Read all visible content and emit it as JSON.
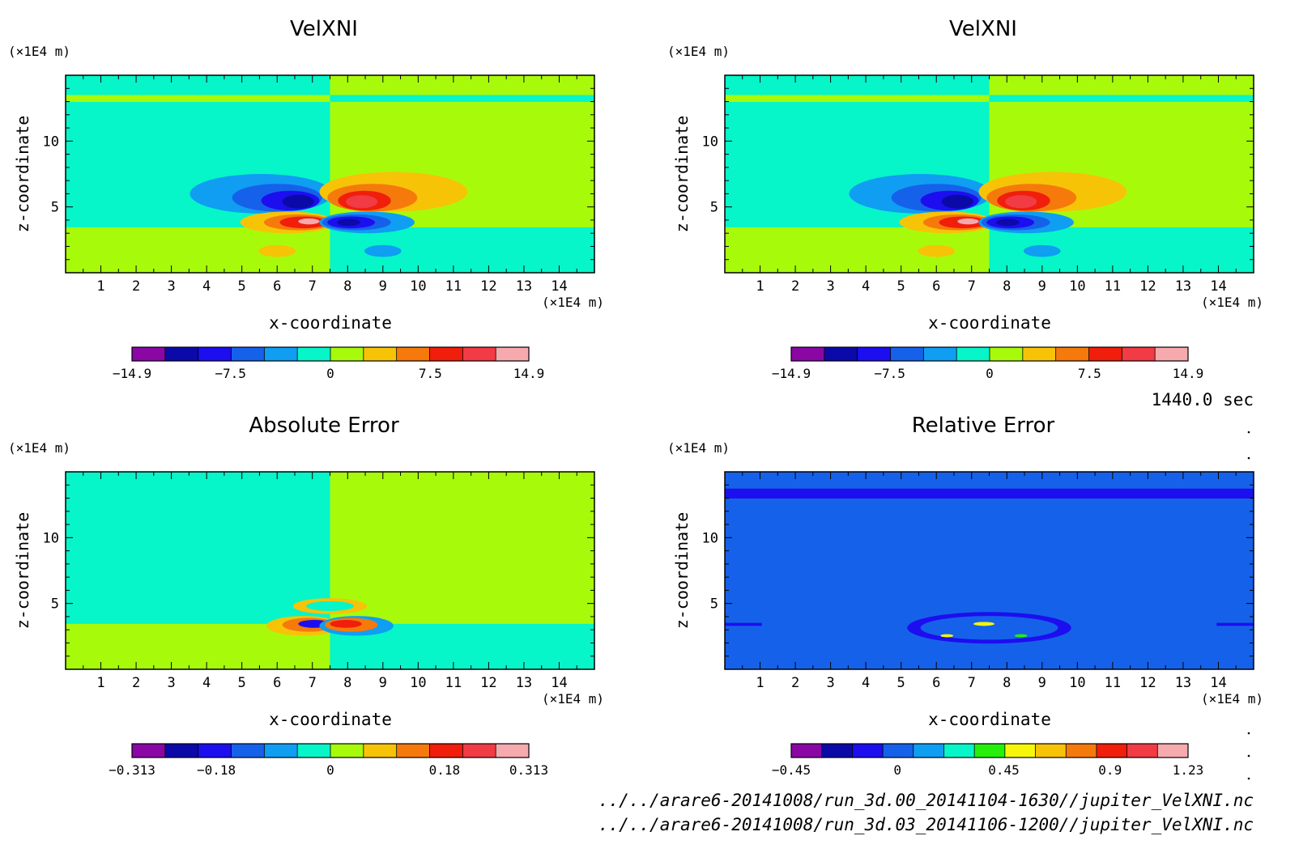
{
  "panels": [
    {
      "title": "VelXNI",
      "xlabel": "x-coordinate",
      "ylabel": "z-coordinate",
      "x_unit": "(×1E4 m)",
      "z_unit": "(×1E4 m)",
      "x_ticks": [
        "1",
        "2",
        "3",
        "4",
        "5",
        "6",
        "7",
        "8",
        "9",
        "10",
        "11",
        "12",
        "13",
        "14"
      ],
      "z_ticks": [
        "5",
        "10"
      ],
      "colorbar_labels": [
        "−14.9",
        "−7.5",
        "0",
        "7.5",
        "14.9"
      ],
      "colorbar_colors": [
        "#8a07a6",
        "#0b0aa8",
        "#1c0eef",
        "#1661ea",
        "#0f9ef2",
        "#06f5c9",
        "#a8fa0b",
        "#f7c307",
        "#f57a0b",
        "#f01e0a",
        "#f13b45",
        "#f7aaae"
      ]
    },
    {
      "title": "VelXNI",
      "xlabel": "x-coordinate",
      "ylabel": "z-coordinate",
      "x_unit": "(×1E4 m)",
      "z_unit": "(×1E4 m)",
      "x_ticks": [
        "1",
        "2",
        "3",
        "4",
        "5",
        "6",
        "7",
        "8",
        "9",
        "10",
        "11",
        "12",
        "13",
        "14"
      ],
      "z_ticks": [
        "5",
        "10"
      ],
      "colorbar_labels": [
        "−14.9",
        "−7.5",
        "0",
        "7.5",
        "14.9"
      ],
      "colorbar_colors": [
        "#8a07a6",
        "#0b0aa8",
        "#1c0eef",
        "#1661ea",
        "#0f9ef2",
        "#06f5c9",
        "#a8fa0b",
        "#f7c307",
        "#f57a0b",
        "#f01e0a",
        "#f13b45",
        "#f7aaae"
      ]
    },
    {
      "title": "Absolute Error",
      "xlabel": "x-coordinate",
      "ylabel": "z-coordinate",
      "x_unit": "(×1E4 m)",
      "z_unit": "(×1E4 m)",
      "x_ticks": [
        "1",
        "2",
        "3",
        "4",
        "5",
        "6",
        "7",
        "8",
        "9",
        "10",
        "11",
        "12",
        "13",
        "14"
      ],
      "z_ticks": [
        "5",
        "10"
      ],
      "colorbar_labels": [
        "−0.313",
        "−0.18",
        "0",
        "0.18",
        "0.313"
      ],
      "colorbar_colors": [
        "#8a07a6",
        "#0b0aa8",
        "#1c0eef",
        "#1661ea",
        "#0f9ef2",
        "#06f5c9",
        "#a8fa0b",
        "#f7c307",
        "#f57a0b",
        "#f01e0a",
        "#f13b45",
        "#f7aaae"
      ]
    },
    {
      "title": "Relative Error",
      "xlabel": "x-coordinate",
      "ylabel": "z-coordinate",
      "x_unit": "(×1E4 m)",
      "z_unit": "(×1E4 m)",
      "x_ticks": [
        "1",
        "2",
        "3",
        "4",
        "5",
        "6",
        "7",
        "8",
        "9",
        "10",
        "11",
        "12",
        "13",
        "14"
      ],
      "z_ticks": [
        "5",
        "10"
      ],
      "colorbar_labels": [
        "−0.45",
        "0",
        "0.45",
        "0.9",
        "1.23"
      ],
      "colorbar_colors": [
        "#8a07a6",
        "#0b0aa8",
        "#1c0eef",
        "#1661ea",
        "#0f9ef2",
        "#06f5c9",
        "#26ef0c",
        "#f5f60a",
        "#f7c307",
        "#f57a0b",
        "#f01e0a",
        "#f13b45",
        "#f7aaae"
      ]
    }
  ],
  "time_label": "1440.0 sec",
  "file_paths": [
    "../../arare6-20141008/run_3d.00_20141104-1630//jupiter_VelXNI.nc",
    "../../arare6-20141008/run_3d.03_20141106-1200//jupiter_VelXNI.nc"
  ],
  "chart_data": [
    {
      "type": "heatmap",
      "title": "VelXNI",
      "xlabel": "x-coordinate",
      "ylabel": "z-coordinate",
      "x_unit": "(×1E4 m)",
      "z_unit": "(×1E4 m)",
      "xlim": [
        0,
        15
      ],
      "ylim": [
        0,
        15
      ],
      "colorbar": {
        "min": -14.9,
        "max": 14.9,
        "labels": [
          -14.9,
          -7.5,
          0,
          7.5,
          14.9
        ]
      }
    },
    {
      "type": "heatmap",
      "title": "VelXNI",
      "xlabel": "x-coordinate",
      "ylabel": "z-coordinate",
      "x_unit": "(×1E4 m)",
      "z_unit": "(×1E4 m)",
      "xlim": [
        0,
        15
      ],
      "ylim": [
        0,
        15
      ],
      "colorbar": {
        "min": -14.9,
        "max": 14.9,
        "labels": [
          -14.9,
          -7.5,
          0,
          7.5,
          14.9
        ]
      }
    },
    {
      "type": "heatmap",
      "title": "Absolute Error",
      "xlabel": "x-coordinate",
      "ylabel": "z-coordinate",
      "x_unit": "(×1E4 m)",
      "z_unit": "(×1E4 m)",
      "xlim": [
        0,
        15
      ],
      "ylim": [
        0,
        15
      ],
      "colorbar": {
        "min": -0.313,
        "max": 0.313,
        "labels": [
          -0.313,
          -0.18,
          0,
          0.18,
          0.313
        ]
      }
    },
    {
      "type": "heatmap",
      "title": "Relative Error",
      "xlabel": "x-coordinate",
      "ylabel": "z-coordinate",
      "x_unit": "(×1E4 m)",
      "z_unit": "(×1E4 m)",
      "xlim": [
        0,
        15
      ],
      "ylim": [
        0,
        15
      ],
      "colorbar": {
        "min": -0.45,
        "max": 1.23,
        "labels": [
          -0.45,
          0,
          0.45,
          0.9,
          1.23
        ]
      }
    }
  ]
}
